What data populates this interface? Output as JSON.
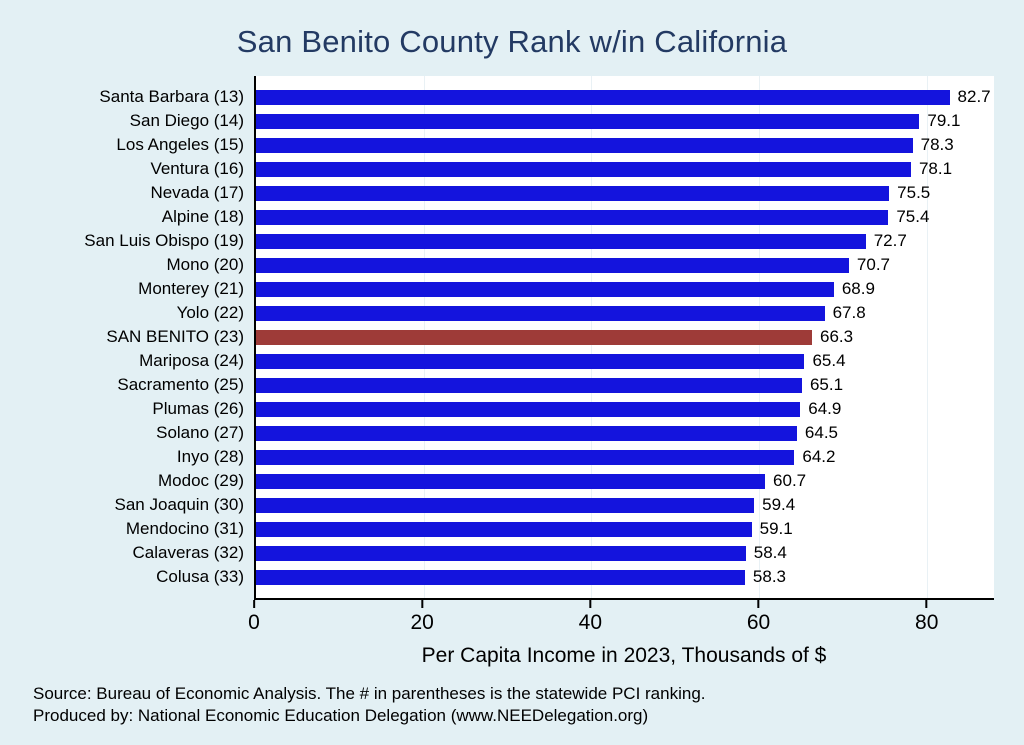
{
  "title": "San Benito County Rank w/in California",
  "chart_data": {
    "type": "bar",
    "orientation": "horizontal",
    "title": "San Benito County Rank w/in California",
    "categories": [
      "Santa Barbara (13)",
      "San Diego (14)",
      "Los Angeles (15)",
      "Ventura (16)",
      "Nevada (17)",
      "Alpine (18)",
      "San Luis Obispo (19)",
      "Mono (20)",
      "Monterey (21)",
      "Yolo (22)",
      "SAN BENITO (23)",
      "Mariposa (24)",
      "Sacramento (25)",
      "Plumas (26)",
      "Solano (27)",
      "Inyo (28)",
      "Modoc (29)",
      "San Joaquin (30)",
      "Mendocino (31)",
      "Calaveras (32)",
      "Colusa (33)"
    ],
    "values": [
      82.7,
      79.1,
      78.3,
      78.1,
      75.5,
      75.4,
      72.7,
      70.7,
      68.9,
      67.8,
      66.3,
      65.4,
      65.1,
      64.9,
      64.5,
      64.2,
      60.7,
      59.4,
      59.1,
      58.4,
      58.3
    ],
    "highlight_index": 10,
    "bar_color": "#1414dd",
    "highlight_color": "#9e3b38",
    "xlabel": "Per Capita Income in 2023, Thousands of $",
    "xticks": [
      0,
      20,
      40,
      60,
      80
    ],
    "xlim": [
      0,
      88
    ],
    "grid": "faint-vertical",
    "legend": "none",
    "value_labels": true
  },
  "footer": {
    "line1": "Source: Bureau of Economic Analysis. The # in parentheses is the statewide PCI ranking.",
    "line2": "Produced by: National Economic Education Delegation (www.NEEDelegation.org)"
  }
}
